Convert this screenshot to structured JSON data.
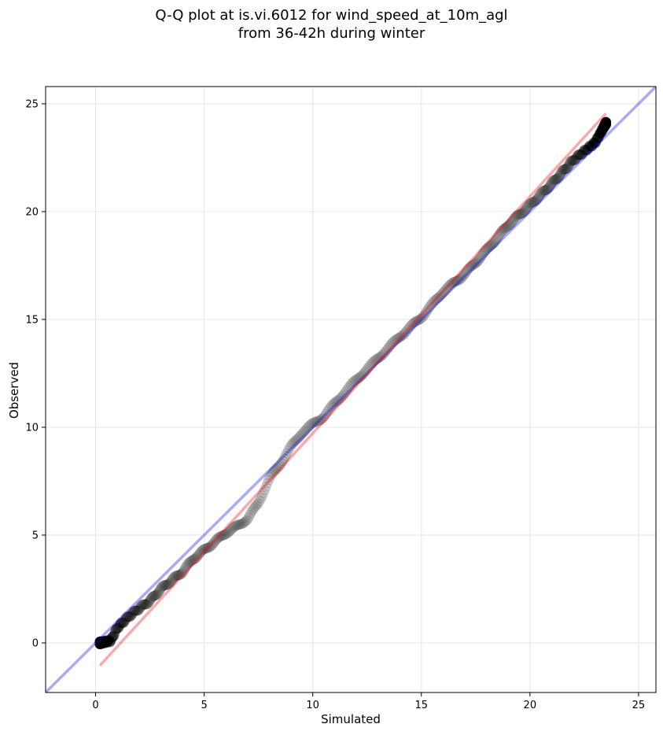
{
  "chart_data": {
    "type": "scatter",
    "title": [
      "Q-Q plot at is.vi.6012 for wind_speed_at_10m_agl",
      "from 36-42h during winter"
    ],
    "xlabel": "Simulated",
    "ylabel": "Observed",
    "xlim": [
      -2.3,
      25.8
    ],
    "ylim": [
      -2.3,
      25.8
    ],
    "xticks": [
      0,
      5,
      10,
      15,
      20,
      25
    ],
    "yticks": [
      0,
      5,
      10,
      15,
      20,
      25
    ],
    "grid": true,
    "reference_line": {
      "kind": "identity",
      "color": "#0000dd"
    },
    "fit_line": {
      "color": "#ee0000",
      "x": [
        0.2,
        23.5
      ],
      "y": [
        -1.05,
        24.55
      ]
    },
    "quantile_profile": {
      "x": [
        0.2,
        0.7,
        1.0,
        1.5,
        2.0,
        2.5,
        3.0,
        3.5,
        4.0,
        4.5,
        5.0,
        5.5,
        6.0,
        6.5,
        7.0,
        7.5,
        8.0,
        8.5,
        9.0,
        9.5,
        10.0,
        10.5,
        11.0,
        12.0,
        13.0,
        14.0,
        15.0,
        16.0,
        17.0,
        18.0,
        19.0,
        20.0,
        21.0,
        22.0,
        23.0,
        23.5
      ],
      "y": [
        0.0,
        0.1,
        0.7,
        1.2,
        1.6,
        1.95,
        2.5,
        2.9,
        3.3,
        3.9,
        4.3,
        4.7,
        5.1,
        5.4,
        5.75,
        6.5,
        7.6,
        8.3,
        9.1,
        9.75,
        10.15,
        10.5,
        11.1,
        12.2,
        13.2,
        14.2,
        15.1,
        16.3,
        17.1,
        18.2,
        19.4,
        20.3,
        21.3,
        22.4,
        23.2,
        24.1
      ]
    },
    "point_style": {
      "color": "#000000",
      "marker": "circle",
      "alpha": 0.1
    }
  }
}
